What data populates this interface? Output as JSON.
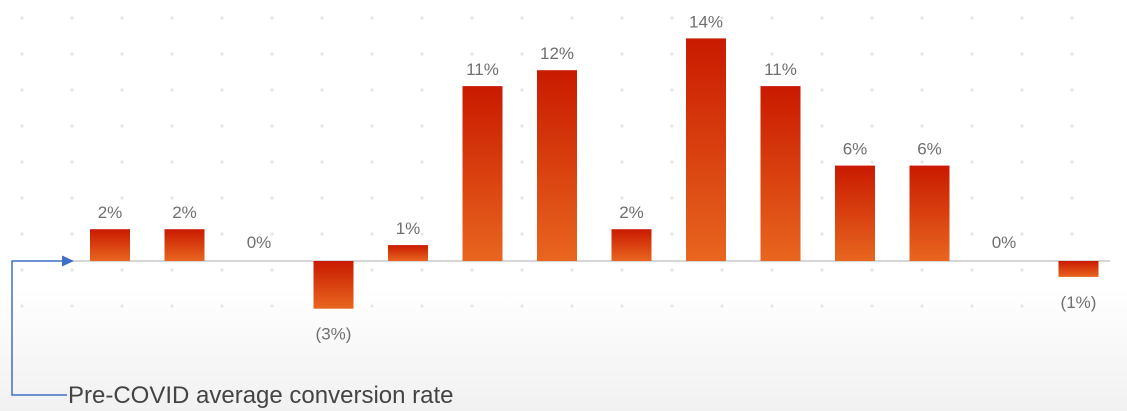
{
  "chart_data": {
    "type": "bar",
    "values": [
      2,
      2,
      0,
      -3,
      1,
      11,
      12,
      2,
      14,
      11,
      6,
      6,
      0,
      -1
    ],
    "data_labels": [
      "2%",
      "2%",
      "0%",
      "(3%)",
      "1%",
      "11%",
      "12%",
      "2%",
      "14%",
      "11%",
      "6%",
      "6%",
      "0%",
      "(1%)"
    ],
    "ylim": [
      -4,
      15
    ],
    "unit": "%",
    "grid": "dotted",
    "annotation": "Pre-COVID average conversion rate"
  },
  "colors": {
    "bar_top": "#c91a00",
    "bar_bottom": "#e8661f",
    "baseline": "#c8c8c8",
    "grid_dot": "#e6e6e6",
    "arrow": "#3f6fc4",
    "label": "#6f6f6f"
  }
}
